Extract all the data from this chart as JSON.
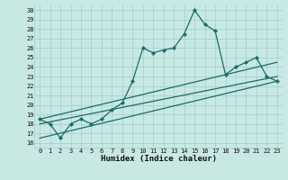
{
  "xlabel": "Humidex (Indice chaleur)",
  "bg_color": "#c8e8e4",
  "grid_color": "#9ecece",
  "line_color": "#1a6b6b",
  "xlim": [
    -0.5,
    23.5
  ],
  "ylim": [
    15.5,
    30.5
  ],
  "xticks": [
    0,
    1,
    2,
    3,
    4,
    5,
    6,
    7,
    8,
    9,
    10,
    11,
    12,
    13,
    14,
    15,
    16,
    17,
    18,
    19,
    20,
    21,
    22,
    23
  ],
  "yticks": [
    16,
    17,
    18,
    19,
    20,
    21,
    22,
    23,
    24,
    25,
    26,
    27,
    28,
    29,
    30
  ],
  "series1_x": [
    0,
    1,
    2,
    3,
    4,
    5,
    6,
    7,
    8,
    9,
    10,
    11,
    12,
    13,
    14,
    15,
    16,
    17,
    18,
    19,
    20,
    21,
    22,
    23
  ],
  "series1_y": [
    18.5,
    18.0,
    16.5,
    18.0,
    18.5,
    18.0,
    18.5,
    19.5,
    20.2,
    22.5,
    26.0,
    25.5,
    25.8,
    26.0,
    27.5,
    30.0,
    28.5,
    27.8,
    23.2,
    24.0,
    24.5,
    25.0,
    23.0,
    22.5
  ],
  "series2_x": [
    0,
    23
  ],
  "series2_y": [
    18.5,
    24.5
  ],
  "series3_x": [
    0,
    23
  ],
  "series3_y": [
    18.0,
    23.0
  ],
  "series4_x": [
    0,
    23
  ],
  "series4_y": [
    16.5,
    22.5
  ],
  "marker_size": 2.2,
  "line_width": 0.9,
  "tick_fontsize": 5.0,
  "xlabel_fontsize": 6.5
}
